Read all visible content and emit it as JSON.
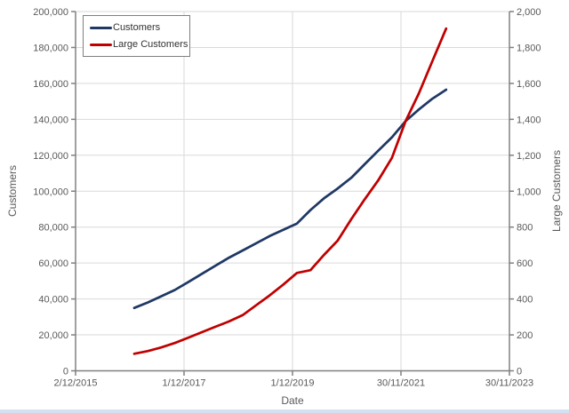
{
  "chart_data": {
    "type": "line",
    "title": "",
    "xlabel": "Date",
    "ylabel_left": "Customers",
    "ylabel_right": "Large Customers",
    "grid": true,
    "legend_position": "top-left",
    "x_axis": {
      "min_date": "2/12/2015",
      "max_date": "30/11/2023",
      "ticks": [
        "2/12/2015",
        "1/12/2017",
        "1/12/2019",
        "30/11/2021",
        "30/11/2023"
      ]
    },
    "y_axis_left": {
      "min": 0,
      "max": 200000,
      "step": 20000,
      "tick_labels": [
        "0",
        "20,000",
        "40,000",
        "60,000",
        "80,000",
        "100,000",
        "120,000",
        "140,000",
        "160,000",
        "180,000",
        "200,000"
      ]
    },
    "y_axis_right": {
      "min": 0,
      "max": 2000,
      "step": 200,
      "tick_labels": [
        "0",
        "200",
        "400",
        "600",
        "800",
        "1,000",
        "1,200",
        "1,400",
        "1,600",
        "1,800",
        "2,000"
      ]
    },
    "x_dates": [
      "31/12/2016",
      "31/3/2017",
      "30/6/2017",
      "30/9/2017",
      "31/12/2017",
      "31/3/2018",
      "30/6/2018",
      "30/9/2018",
      "31/12/2018",
      "31/3/2019",
      "30/6/2019",
      "30/9/2019",
      "31/12/2019",
      "31/3/2020",
      "30/6/2020",
      "30/9/2020",
      "31/12/2020",
      "31/3/2021",
      "30/6/2021",
      "30/9/2021",
      "31/12/2021",
      "31/3/2022",
      "30/6/2022",
      "30/9/2022"
    ],
    "series": [
      {
        "name": "Customers",
        "axis": "left",
        "color": "#1f3864",
        "values": [
          35000,
          38000,
          41500,
          45000,
          49500,
          54000,
          58500,
          63000,
          67000,
          71000,
          75000,
          78500,
          82000,
          89500,
          96000,
          101500,
          107500,
          115000,
          122500,
          130000,
          139000,
          145500,
          151500,
          156500
        ]
      },
      {
        "name": "Large Customers",
        "axis": "right",
        "color": "#c00000",
        "values": [
          95,
          110,
          130,
          155,
          185,
          215,
          245,
          275,
          310,
          365,
          420,
          480,
          545,
          560,
          645,
          725,
          845,
          955,
          1060,
          1185,
          1390,
          1545,
          1725,
          1905
        ]
      }
    ]
  },
  "colors": {
    "gridline": "#d9d9d9",
    "axis_line": "#808080",
    "tick_label": "#595959",
    "axis_title": "#595959",
    "legend_border": "#7f7f7f",
    "bottom_strip": "#d4e1f0",
    "background": "#ffffff"
  }
}
